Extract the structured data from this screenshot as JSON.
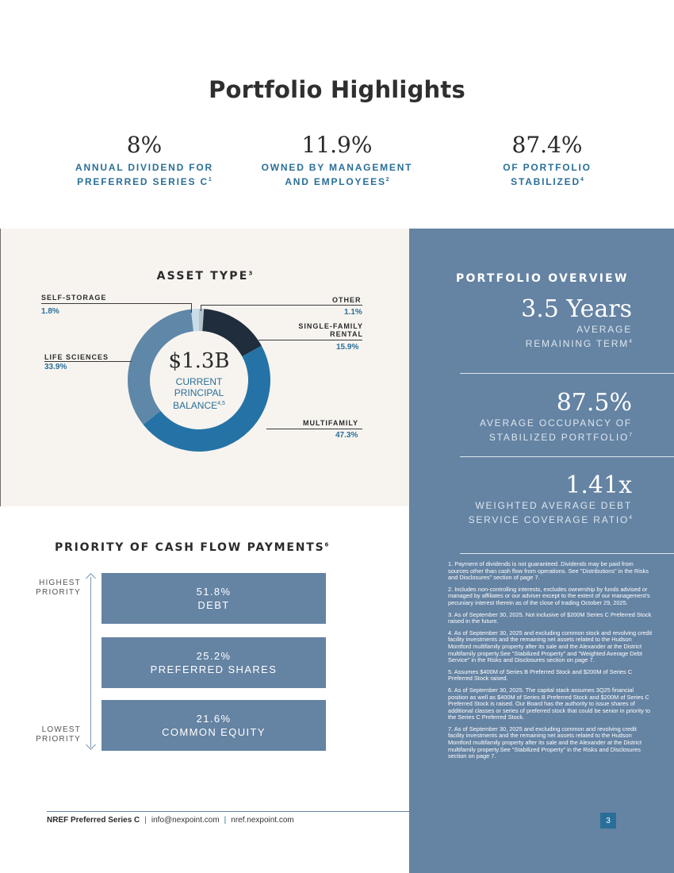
{
  "title": "Portfolio Highlights",
  "highlights": [
    {
      "value": "8%",
      "line1": "ANNUAL DIVIDEND FOR",
      "line2": "PREFERRED SERIES C",
      "sup": "1"
    },
    {
      "value": "11.9%",
      "line1": "OWNED BY MANAGEMENT",
      "line2": "AND EMPLOYEES",
      "sup": "2"
    },
    {
      "value": "87.4%",
      "line1": "OF PORTFOLIO",
      "line2": "STABILIZED",
      "sup": "4"
    }
  ],
  "asset_type": {
    "title": "ASSET TYPE",
    "title_sup": "3",
    "center_value": "$1.3B",
    "center_line1": "CURRENT",
    "center_line2": "PRINCIPAL",
    "center_line3": "BALANCE",
    "center_sup": "4,5",
    "labels": {
      "self_storage": "SELF-STORAGE",
      "other": "OTHER",
      "sfr_line1": "SINGLE-FAMILY",
      "sfr_line2": "RENTAL",
      "life_sciences": "LIFE SCIENCES",
      "multifamily": "MULTIFAMILY"
    }
  },
  "chart_data": {
    "type": "pie",
    "categories": [
      "Other",
      "Single-Family Rental",
      "Multifamily",
      "Life Sciences",
      "Self-Storage"
    ],
    "values": [
      1.1,
      15.9,
      47.3,
      33.9,
      1.8
    ],
    "value_labels": [
      "1.1%",
      "15.9%",
      "47.3%",
      "33.9%",
      "1.8%"
    ],
    "colors": [
      "#b9c3cc",
      "#1f2d3d",
      "#2573a6",
      "#5f87a8",
      "#c8dde8"
    ],
    "title": "ASSET TYPE"
  },
  "overview": {
    "title": "PORTFOLIO OVERVIEW",
    "items": [
      {
        "value": "3.5 Years",
        "line1": "AVERAGE",
        "line2": "REMAINING TERM",
        "sup": "4"
      },
      {
        "value": "87.5%",
        "line1": "AVERAGE OCCUPANCY OF",
        "line2": "STABILIZED PORTFOLIO",
        "sup": "7"
      },
      {
        "value": "1.41x",
        "line1": "WEIGHTED AVERAGE DEBT",
        "line2": "SERVICE COVERAGE RATIO",
        "sup": "4"
      }
    ]
  },
  "priority": {
    "title": "PRIORITY OF CASH FLOW PAYMENTS",
    "title_sup": "6",
    "highest_line1": "HIGHEST",
    "highest_line2": "PRIORITY",
    "lowest_line1": "LOWEST",
    "lowest_line2": "PRIORITY",
    "boxes": [
      {
        "pct": "51.8%",
        "label": "DEBT"
      },
      {
        "pct": "25.2%",
        "label": "PREFERRED SHARES"
      },
      {
        "pct": "21.6%",
        "label": "COMMON EQUITY"
      }
    ]
  },
  "footnotes": [
    "1. Payment of dividends is not guaranteed. Dividends may be paid from sources other than cash flow from operations. See \"Distributions\" in the Risks and Disclosures\" section of page 7.",
    "2. Includes non-controlling interests, excludes ownership by funds advised or managed by affiliates or our adviser except to the extent of our management's pecuniary interest therein as of the close of trading October 29, 2025.",
    "3. As of September 30, 2025. Not inclusive of $200M Series C Preferred Stock raised in the future.",
    "4. As of September 30, 2025 and excluding common stock and revolving credit facility investments and the remaining net assets related to the Hudson Montford multifamily property after its sale and the Alexander at the District multifamily property.See \"Stabilized Property\" and \"Weighted Average Debt Service\" in the Risks and Disclosures section on page 7.",
    "5. Assumes $400M of Series B Preferred Stock and $200M of Series C Preferred Stock raised.",
    "6. As of September 30, 2025. The capital stack assumes 3Q25 financial position as well as $400M of Series B Preferred Stock and $200M of Series C Preferred Stock is raised. Our Board has the authority to issue shares of additional classes or series of preferred stock that could be senior in priority to the Series C Preferred Stock.",
    "7. As of September 30, 2025 and excluding common and revolving credit facility investments and the remaining net assets related to the Hudson Montford multifamily property after its sale and the Alexander at the District multifamily property.See \"Stabilized Property\" in the Risks and Disclosures section on page 7."
  ],
  "footer": {
    "brand": "NREF Preferred Series C",
    "email": "info@nexpoint.com",
    "site": "nref.nexpoint.com",
    "page": "3"
  }
}
